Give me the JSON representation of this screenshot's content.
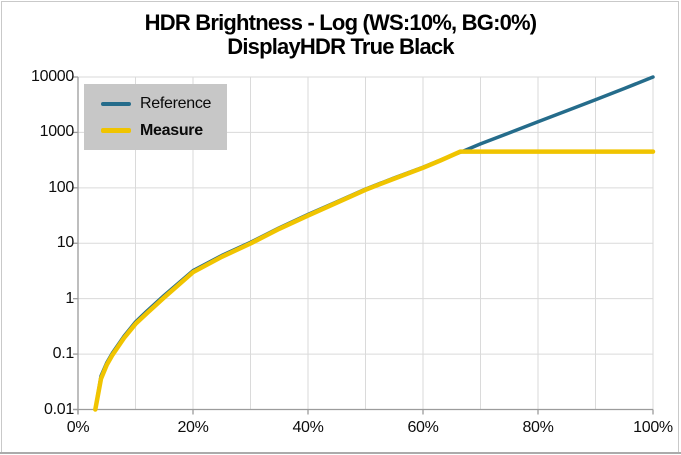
{
  "title": {
    "line1": "HDR Brightness - Log (WS:10%, BG:0%)",
    "line2": "DisplayHDR True Black"
  },
  "chart_data": {
    "type": "line",
    "title": "HDR Brightness - Log (WS:10%, BG:0%) - DisplayHDR True Black",
    "x_axis": {
      "min": 0,
      "max": 100,
      "unit": "%",
      "ticks": [
        "0%",
        "20%",
        "40%",
        "60%",
        "80%",
        "100%"
      ],
      "tick_values": [
        0,
        20,
        40,
        60,
        80,
        100
      ],
      "minor_grid_step_percent": 10
    },
    "y_axis": {
      "scale": "log",
      "min": 0.01,
      "max": 10000,
      "ticks": [
        "10000",
        "1000",
        "100",
        "10",
        "1",
        "0.1",
        "0.01"
      ],
      "tick_values": [
        10000,
        1000,
        100,
        10,
        1,
        0.1,
        0.01
      ]
    },
    "grid": true,
    "legend_position": "top-left",
    "series": [
      {
        "name": "Reference",
        "color": "#256c8b",
        "x": [
          3,
          4,
          5,
          6,
          8,
          10,
          12,
          15,
          20,
          25,
          30,
          35,
          40,
          45,
          50,
          55,
          60,
          65,
          67,
          70,
          75,
          80,
          85,
          90,
          95,
          100
        ],
        "y": [
          0.01,
          0.04,
          0.07,
          0.105,
          0.21,
          0.38,
          0.6,
          1.15,
          3.2,
          6.0,
          10.4,
          19,
          33,
          56,
          95,
          151,
          235,
          385,
          460,
          620,
          980,
          1560,
          2460,
          3900,
          6200,
          10000
        ]
      },
      {
        "name": "Measure",
        "color": "#f0c400",
        "x": [
          3,
          4,
          5,
          6,
          8,
          10,
          12,
          15,
          20,
          25,
          30,
          35,
          40,
          45,
          50,
          55,
          60,
          63,
          66.5,
          70,
          75,
          80,
          85,
          90,
          95,
          100
        ],
        "y": [
          0.01,
          0.036,
          0.064,
          0.097,
          0.195,
          0.35,
          0.55,
          1.06,
          3.0,
          5.7,
          9.9,
          18.2,
          31.5,
          54,
          92,
          147,
          230,
          310,
          450,
          450,
          450,
          450,
          450,
          450,
          450,
          450
        ]
      }
    ]
  },
  "colors": {
    "gridline": "#dadada",
    "axis": "#9c9c9c",
    "legend_background": "#c7c7c7",
    "background": "#ffffff"
  }
}
